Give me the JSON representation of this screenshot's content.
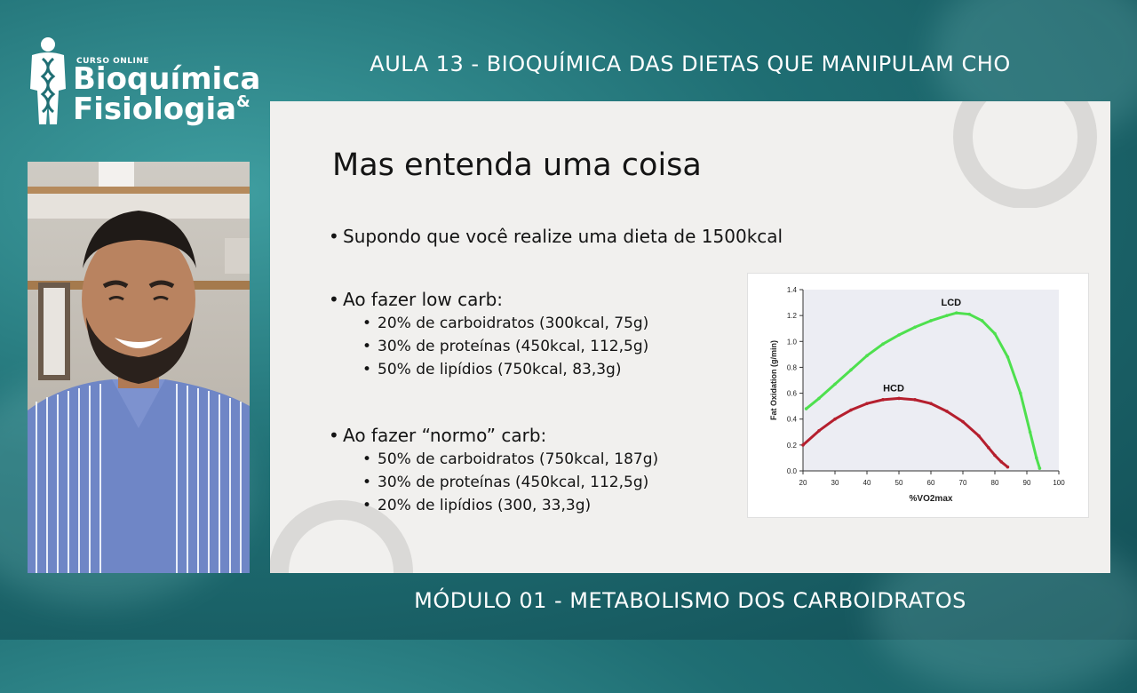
{
  "header": {
    "lesson_title": "AULA 13 - BIOQUÍMICA DAS DIETAS QUE MANIPULAM CHO"
  },
  "footer": {
    "module_title": "MÓDULO 01 - METABOLISMO DOS CARBOIDRATOS"
  },
  "logo": {
    "small": "CURSO ONLINE",
    "line1": "Bioquímica",
    "line2": "Fisiologia",
    "amp": "&"
  },
  "slide": {
    "title": "Mas entenda uma coisa",
    "bullet1": "Supondo que você realize uma dieta de 1500kcal",
    "bullet2": "Ao fazer low carb:",
    "low_carb": [
      "20% de carboidratos (300kcal, 75g)",
      "30% de proteínas (450kcal, 112,5g)",
      "50% de lipídios (750kcal, 83,3g)"
    ],
    "bullet3": "Ao fazer “normo” carb:",
    "normo_carb": [
      "50% de carboidratos (750kcal, 187g)",
      "30% de proteínas (450kcal, 112,5g)",
      "20% de lipídios (300, 33,3g)"
    ]
  },
  "chart_data": {
    "type": "scatter",
    "xlabel": "%VO2max",
    "ylabel": "Fat Oxidation (g/min)",
    "xlim": [
      20,
      100
    ],
    "ylim": [
      0.0,
      1.4
    ],
    "xticks": [
      "20",
      "30",
      "40",
      "50",
      "60",
      "70",
      "80",
      "90",
      "100"
    ],
    "yticks": [
      "0.0",
      "0.2",
      "0.4",
      "0.6",
      "0.8",
      "1.0",
      "1.2",
      "1.4"
    ],
    "series": [
      {
        "name": "LCD",
        "color": "#4ee04e",
        "x": [
          21,
          25,
          30,
          35,
          40,
          45,
          50,
          55,
          60,
          65,
          68,
          72,
          76,
          80,
          84,
          88,
          91,
          93,
          94
        ],
        "y": [
          0.48,
          0.56,
          0.67,
          0.78,
          0.89,
          0.98,
          1.05,
          1.11,
          1.16,
          1.2,
          1.22,
          1.21,
          1.16,
          1.06,
          0.88,
          0.6,
          0.3,
          0.1,
          0.02
        ]
      },
      {
        "name": "HCD",
        "color": "#b51f2e",
        "x": [
          20,
          25,
          30,
          35,
          40,
          45,
          50,
          55,
          60,
          65,
          70,
          75,
          78,
          80,
          82,
          84
        ],
        "y": [
          0.2,
          0.31,
          0.4,
          0.47,
          0.52,
          0.55,
          0.56,
          0.55,
          0.52,
          0.46,
          0.38,
          0.27,
          0.18,
          0.12,
          0.07,
          0.03
        ]
      }
    ],
    "grid": false,
    "legend": "inline labels"
  }
}
